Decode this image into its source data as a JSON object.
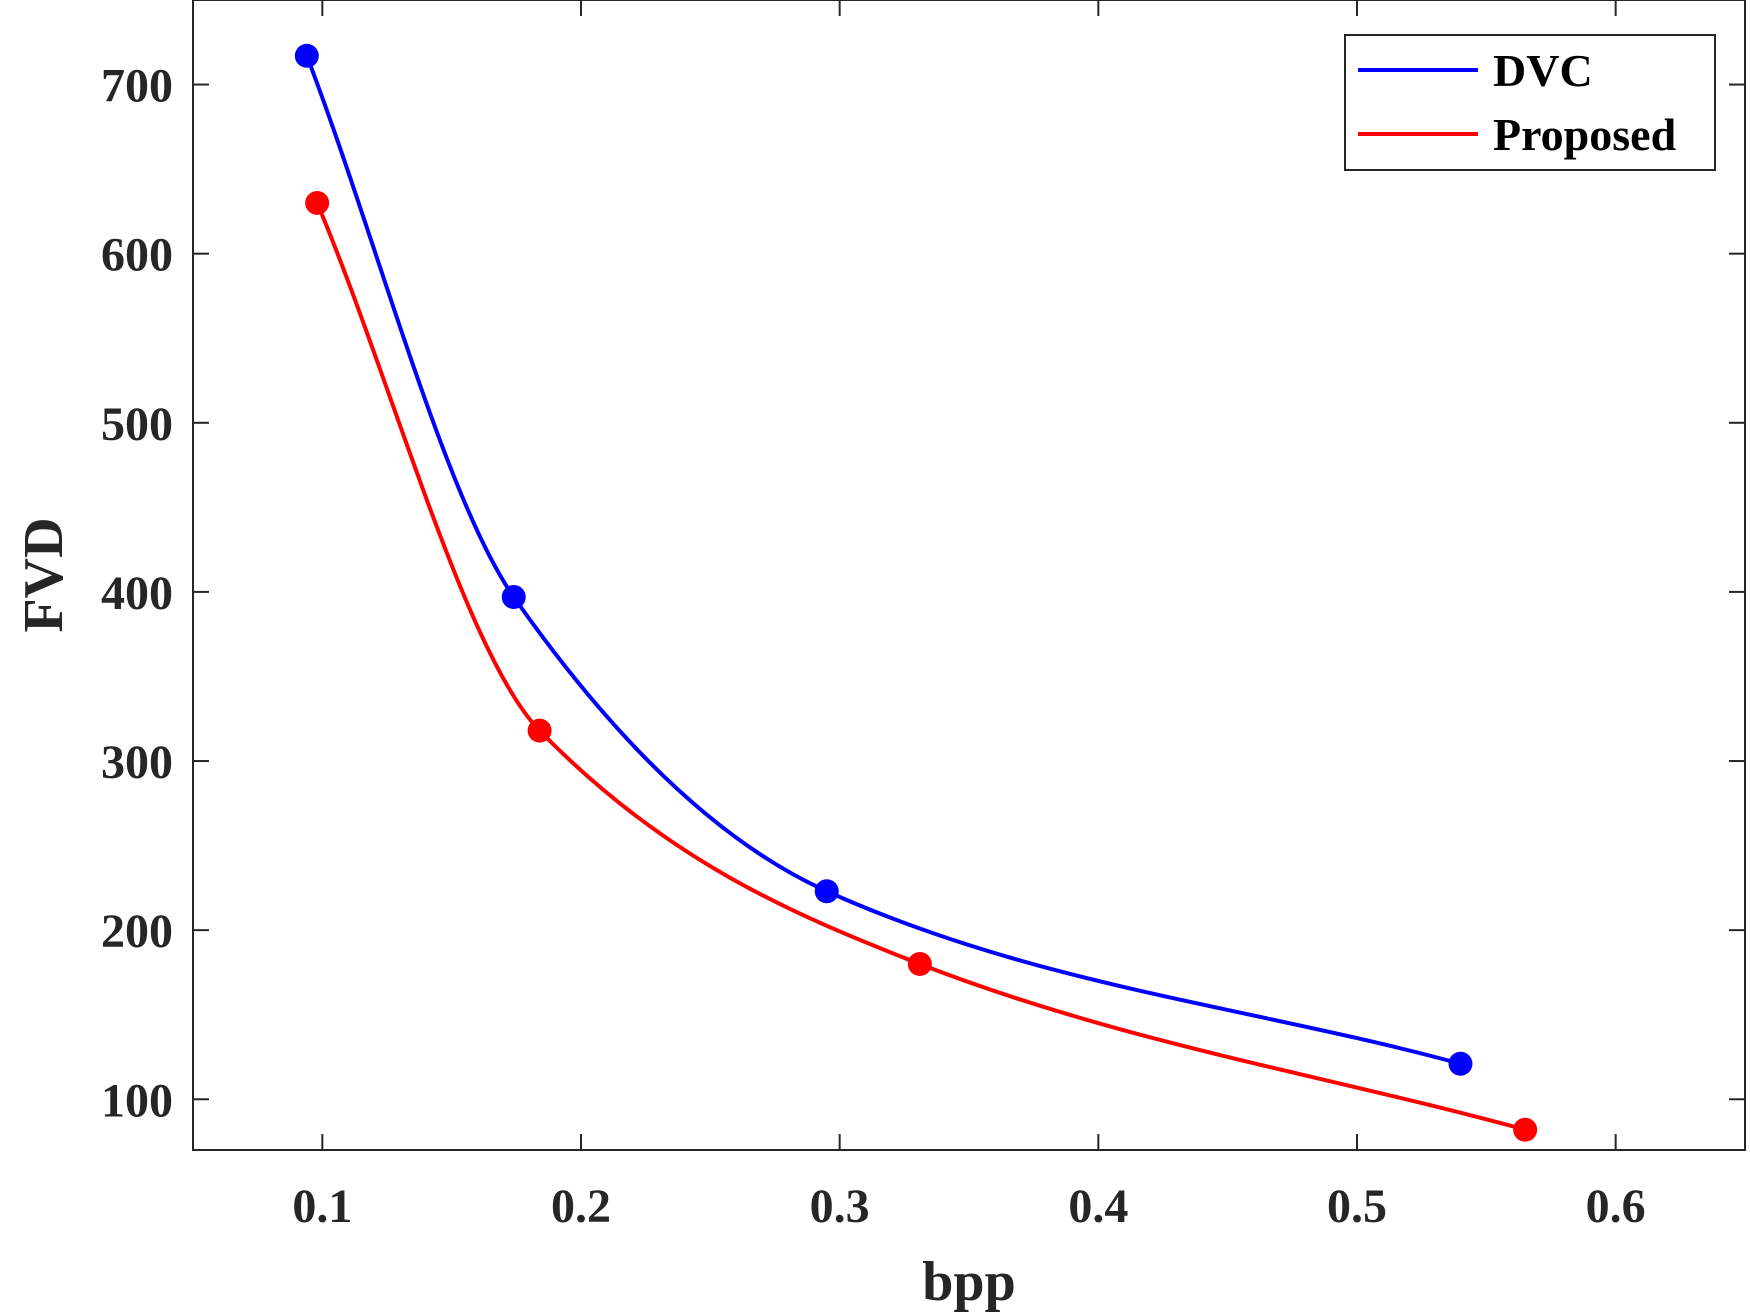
{
  "chart_data": {
    "type": "line",
    "xlabel": "bpp",
    "ylabel": "FVD",
    "xlim": [
      0.05,
      0.65
    ],
    "ylim": [
      70,
      750
    ],
    "xticks": [
      0.1,
      0.2,
      0.3,
      0.4,
      0.5,
      0.6
    ],
    "xtick_labels": [
      "0.1",
      "0.2",
      "0.3",
      "0.4",
      "0.5",
      "0.6"
    ],
    "yticks": [
      100,
      200,
      300,
      400,
      500,
      600,
      700
    ],
    "ytick_labels": [
      "100",
      "200",
      "300",
      "400",
      "500",
      "600",
      "700"
    ],
    "grid": false,
    "legend_position": "top-right",
    "series": [
      {
        "name": "DVC",
        "color": "#0000ff",
        "x": [
          0.094,
          0.174,
          0.295,
          0.54
        ],
        "y": [
          717,
          397,
          223,
          121
        ]
      },
      {
        "name": "Proposed",
        "color": "#ff0000",
        "x": [
          0.098,
          0.184,
          0.331,
          0.565
        ],
        "y": [
          630,
          318,
          180,
          82
        ]
      }
    ]
  }
}
